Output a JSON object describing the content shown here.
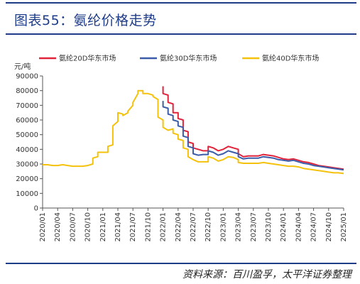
{
  "title": "图表55：氨纶价格走势",
  "source": "资料来源：百川盈孚，太平洋证券整理",
  "chart_data": {
    "type": "line",
    "ylabel": "元/吨",
    "ylim": [
      0,
      90000
    ],
    "yticks": [
      0,
      10000,
      20000,
      30000,
      40000,
      50000,
      60000,
      70000,
      80000,
      90000
    ],
    "xlim": [
      "2020/01",
      "2025/01"
    ],
    "xticks": [
      "2020/01",
      "2020/04",
      "2020/07",
      "2020/10",
      "2021/01",
      "2021/04",
      "2021/07",
      "2021/10",
      "2022/01",
      "2022/04",
      "2022/07",
      "2022/10",
      "2023/01",
      "2023/04",
      "2023/07",
      "2023/10",
      "2024/01",
      "2024/04",
      "2024/07",
      "2024/10",
      "2025/01"
    ],
    "legend_position": "top",
    "series": [
      {
        "name": "氨纶20D华东市场",
        "color": "#e0223a",
        "points": [
          [
            "2022/01",
            83000
          ],
          [
            "2022/01",
            78000
          ],
          [
            "2022/02",
            77000
          ],
          [
            "2022/02",
            72000
          ],
          [
            "2022/03",
            71000
          ],
          [
            "2022/03",
            65000
          ],
          [
            "2022/04",
            65000
          ],
          [
            "2022/04",
            61000
          ],
          [
            "2022/05",
            60000
          ],
          [
            "2022/05",
            53000
          ],
          [
            "2022/06",
            52000
          ],
          [
            "2022/06",
            45000
          ],
          [
            "2022/07",
            44000
          ],
          [
            "2022/07",
            41000
          ],
          [
            "2022/08",
            40000
          ],
          [
            "2022/09",
            39000
          ],
          [
            "2022/10",
            39000
          ],
          [
            "2022/10",
            42000
          ],
          [
            "2022/11",
            41000
          ],
          [
            "2022/12",
            39000
          ],
          [
            "2023/01",
            40000
          ],
          [
            "2023/02",
            42000
          ],
          [
            "2023/03",
            41000
          ],
          [
            "2023/04",
            40000
          ],
          [
            "2023/04",
            37000
          ],
          [
            "2023/05",
            35000
          ],
          [
            "2023/06",
            35500
          ],
          [
            "2023/07",
            35500
          ],
          [
            "2023/08",
            35500
          ],
          [
            "2023/09",
            36500
          ],
          [
            "2023/10",
            36000
          ],
          [
            "2023/11",
            35500
          ],
          [
            "2023/12",
            34500
          ],
          [
            "2024/01",
            33500
          ],
          [
            "2024/02",
            33000
          ],
          [
            "2024/03",
            33500
          ],
          [
            "2024/04",
            32500
          ],
          [
            "2024/05",
            31500
          ],
          [
            "2024/06",
            31000
          ],
          [
            "2024/07",
            30000
          ],
          [
            "2024/08",
            29000
          ],
          [
            "2024/09",
            28500
          ],
          [
            "2024/10",
            28000
          ],
          [
            "2024/11",
            27500
          ],
          [
            "2024/12",
            27000
          ],
          [
            "2025/01",
            26500
          ]
        ]
      },
      {
        "name": "氨纶30D华东市场",
        "color": "#3b5ca8",
        "points": [
          [
            "2022/01",
            73000
          ],
          [
            "2022/01",
            69000
          ],
          [
            "2022/02",
            68000
          ],
          [
            "2022/02",
            64000
          ],
          [
            "2022/03",
            63000
          ],
          [
            "2022/03",
            60000
          ],
          [
            "2022/04",
            59000
          ],
          [
            "2022/04",
            56000
          ],
          [
            "2022/05",
            55000
          ],
          [
            "2022/05",
            49000
          ],
          [
            "2022/06",
            48000
          ],
          [
            "2022/06",
            42000
          ],
          [
            "2022/07",
            41000
          ],
          [
            "2022/07",
            37000
          ],
          [
            "2022/08",
            36000
          ],
          [
            "2022/09",
            36500
          ],
          [
            "2022/10",
            36500
          ],
          [
            "2022/10",
            39000
          ],
          [
            "2022/11",
            38000
          ],
          [
            "2022/12",
            36000
          ],
          [
            "2023/01",
            37000
          ],
          [
            "2023/02",
            39000
          ],
          [
            "2023/03",
            38000
          ],
          [
            "2023/04",
            37000
          ],
          [
            "2023/04",
            35000
          ],
          [
            "2023/05",
            33500
          ],
          [
            "2023/06",
            34000
          ],
          [
            "2023/07",
            34000
          ],
          [
            "2023/08",
            34000
          ],
          [
            "2023/09",
            35000
          ],
          [
            "2023/10",
            34500
          ],
          [
            "2023/11",
            34000
          ],
          [
            "2023/12",
            33000
          ],
          [
            "2024/01",
            32500
          ],
          [
            "2024/02",
            32000
          ],
          [
            "2024/03",
            32500
          ],
          [
            "2024/04",
            31500
          ],
          [
            "2024/05",
            30500
          ],
          [
            "2024/06",
            30000
          ],
          [
            "2024/07",
            29000
          ],
          [
            "2024/08",
            28500
          ],
          [
            "2024/09",
            28000
          ],
          [
            "2024/10",
            27500
          ],
          [
            "2024/11",
            27000
          ],
          [
            "2024/12",
            26500
          ],
          [
            "2025/01",
            26000
          ]
        ]
      },
      {
        "name": "氨纶40D华东市场",
        "color": "#f4c20d",
        "points": [
          [
            "2020/01",
            29500
          ],
          [
            "2020/02",
            29500
          ],
          [
            "2020/03",
            29000
          ],
          [
            "2020/04",
            29000
          ],
          [
            "2020/05",
            29500
          ],
          [
            "2020/06",
            29000
          ],
          [
            "2020/07",
            28500
          ],
          [
            "2020/08",
            28500
          ],
          [
            "2020/09",
            28500
          ],
          [
            "2020/10",
            29000
          ],
          [
            "2020/11",
            30000
          ],
          [
            "2020/11",
            34000
          ],
          [
            "2020/12",
            35000
          ],
          [
            "2020/12",
            38000
          ],
          [
            "2021/01",
            38000
          ],
          [
            "2021/02",
            38000
          ],
          [
            "2021/02",
            42000
          ],
          [
            "2021/03",
            43000
          ],
          [
            "2021/03",
            56000
          ],
          [
            "2021/04",
            59000
          ],
          [
            "2021/04",
            65000
          ],
          [
            "2021/05",
            64000
          ],
          [
            "2021/05",
            63000
          ],
          [
            "2021/06",
            65000
          ],
          [
            "2021/06",
            66000
          ],
          [
            "2021/07",
            70000
          ],
          [
            "2021/07",
            72000
          ],
          [
            "2021/08",
            78000
          ],
          [
            "2021/08",
            80000
          ],
          [
            "2021/09",
            80000
          ],
          [
            "2021/09",
            78000
          ],
          [
            "2021/10",
            78000
          ],
          [
            "2021/11",
            77000
          ],
          [
            "2021/11",
            76000
          ],
          [
            "2021/12",
            74000
          ],
          [
            "2021/12",
            62000
          ],
          [
            "2022/01",
            60000
          ],
          [
            "2022/01",
            55000
          ],
          [
            "2022/02",
            53000
          ],
          [
            "2022/03",
            54000
          ],
          [
            "2022/03",
            51000
          ],
          [
            "2022/04",
            50000
          ],
          [
            "2022/04",
            47000
          ],
          [
            "2022/05",
            46000
          ],
          [
            "2022/05",
            41000
          ],
          [
            "2022/06",
            40000
          ],
          [
            "2022/06",
            35000
          ],
          [
            "2022/07",
            33000
          ],
          [
            "2022/08",
            31500
          ],
          [
            "2022/09",
            31500
          ],
          [
            "2022/10",
            31500
          ],
          [
            "2022/10",
            35000
          ],
          [
            "2022/11",
            34000
          ],
          [
            "2022/12",
            32000
          ],
          [
            "2023/01",
            33000
          ],
          [
            "2023/02",
            35000
          ],
          [
            "2023/03",
            34500
          ],
          [
            "2023/04",
            33000
          ],
          [
            "2023/04",
            31000
          ],
          [
            "2023/05",
            30500
          ],
          [
            "2023/06",
            30500
          ],
          [
            "2023/07",
            30500
          ],
          [
            "2023/08",
            30500
          ],
          [
            "2023/09",
            31000
          ],
          [
            "2023/10",
            30500
          ],
          [
            "2023/11",
            30000
          ],
          [
            "2023/12",
            29500
          ],
          [
            "2024/01",
            29000
          ],
          [
            "2024/02",
            28500
          ],
          [
            "2024/03",
            28500
          ],
          [
            "2024/04",
            28000
          ],
          [
            "2024/05",
            27000
          ],
          [
            "2024/06",
            26500
          ],
          [
            "2024/07",
            26000
          ],
          [
            "2024/08",
            25500
          ],
          [
            "2024/09",
            25000
          ],
          [
            "2024/10",
            24500
          ],
          [
            "2024/11",
            24000
          ],
          [
            "2024/12",
            24000
          ],
          [
            "2025/01",
            23500
          ]
        ]
      }
    ]
  }
}
